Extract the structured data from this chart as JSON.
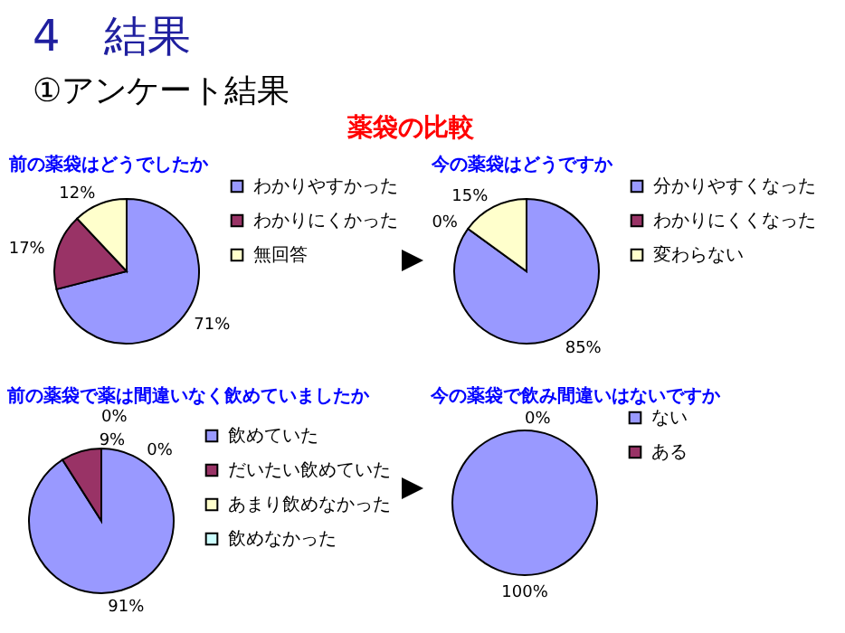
{
  "chart_data": [
    {
      "type": "other",
      "title": "4　結果",
      "subtitle": "①アンケート結果",
      "annotations": [
        "薬袋の比較"
      ]
    },
    {
      "type": "pie",
      "title": "前の薬袋はどうでしたか",
      "categories": [
        "わかりやすかった",
        "わかりにくかった",
        "無回答"
      ],
      "values": [
        71,
        17,
        12
      ],
      "colors": [
        "#9999ff",
        "#993366",
        "#ffffcc"
      ],
      "value_labels": [
        "71%",
        "17%",
        "12%"
      ],
      "legend": "right"
    },
    {
      "type": "pie",
      "title": "今の薬袋はどうですか",
      "categories": [
        "分かりやすくなった",
        "わかりにくくなった",
        "変わらない"
      ],
      "values": [
        85,
        0,
        15
      ],
      "colors": [
        "#9999ff",
        "#993366",
        "#ffffcc"
      ],
      "value_labels": [
        "85%",
        "0%",
        "15%"
      ],
      "legend": "right"
    },
    {
      "type": "pie",
      "title": "前の薬袋で薬は間違いなく飲めていましたか",
      "categories": [
        "飲めていた",
        "だいたい飲めていた",
        "あまり飲めなかった",
        "飲めなかった"
      ],
      "values": [
        91,
        9,
        0,
        0
      ],
      "colors": [
        "#9999ff",
        "#993366",
        "#ffffcc",
        "#ccffff"
      ],
      "value_labels": [
        "91%",
        "9%",
        "0%",
        "0%"
      ],
      "legend": "right"
    },
    {
      "type": "pie",
      "title": "今の薬袋で飲み間違いはないですか",
      "categories": [
        "ない",
        "ある"
      ],
      "values": [
        100,
        0
      ],
      "colors": [
        "#9999ff",
        "#993366"
      ],
      "value_labels": [
        "100%",
        "0%"
      ],
      "legend": "right"
    }
  ]
}
